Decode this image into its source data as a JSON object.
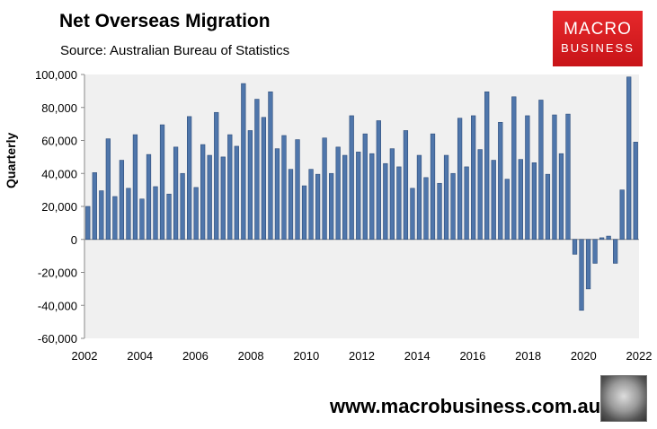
{
  "header": {
    "title": "Net Overseas Migration",
    "subtitle": "Source: Australian Bureau of Statistics"
  },
  "logo": {
    "line1": "MACRO",
    "line2": "BUSINESS"
  },
  "footer": {
    "url": "www.macrobusiness.com.au"
  },
  "colors": {
    "bar": "#4f76ab",
    "bar_edge": "#2e4d7a",
    "plot_bg": "#f0f0f0",
    "logo_red": "#d81e22"
  },
  "chart_data": {
    "type": "bar",
    "ylabel": "Quarterly",
    "ylim": [
      -60000,
      100000
    ],
    "ytick_labels": [
      "100,000",
      "80,000",
      "60,000",
      "40,000",
      "20,000",
      "0",
      "-20,000",
      "-40,000",
      "-60,000"
    ],
    "ytick_values": [
      100000,
      80000,
      60000,
      40000,
      20000,
      0,
      -20000,
      -40000,
      -60000
    ],
    "xtick_labels": [
      "2002",
      "2004",
      "2006",
      "2008",
      "2010",
      "2012",
      "2014",
      "2016",
      "2018",
      "2020",
      "2022"
    ],
    "x_range": [
      2002,
      2022
    ],
    "grid": false,
    "legend": "none",
    "values": [
      20000,
      40500,
      29500,
      61000,
      26000,
      48000,
      31000,
      63500,
      24500,
      51500,
      32000,
      69500,
      27500,
      56000,
      40000,
      74500,
      31500,
      57500,
      51000,
      77000,
      50000,
      63500,
      56500,
      94500,
      66000,
      85000,
      74000,
      89500,
      55000,
      63000,
      42500,
      60500,
      32500,
      42500,
      39500,
      61500,
      40000,
      56000,
      51000,
      75000,
      53000,
      64000,
      52000,
      72000,
      46000,
      55000,
      44000,
      66000,
      31000,
      51000,
      37500,
      64000,
      34000,
      51000,
      40000,
      73500,
      44000,
      75000,
      54500,
      89500,
      48000,
      71000,
      36500,
      86500,
      48500,
      75000,
      46500,
      84500,
      39500,
      75500,
      52000,
      76000,
      -9000,
      -43000,
      -30000,
      -14500,
      1000,
      2000,
      -14500,
      30000,
      98500,
      59000
    ]
  }
}
